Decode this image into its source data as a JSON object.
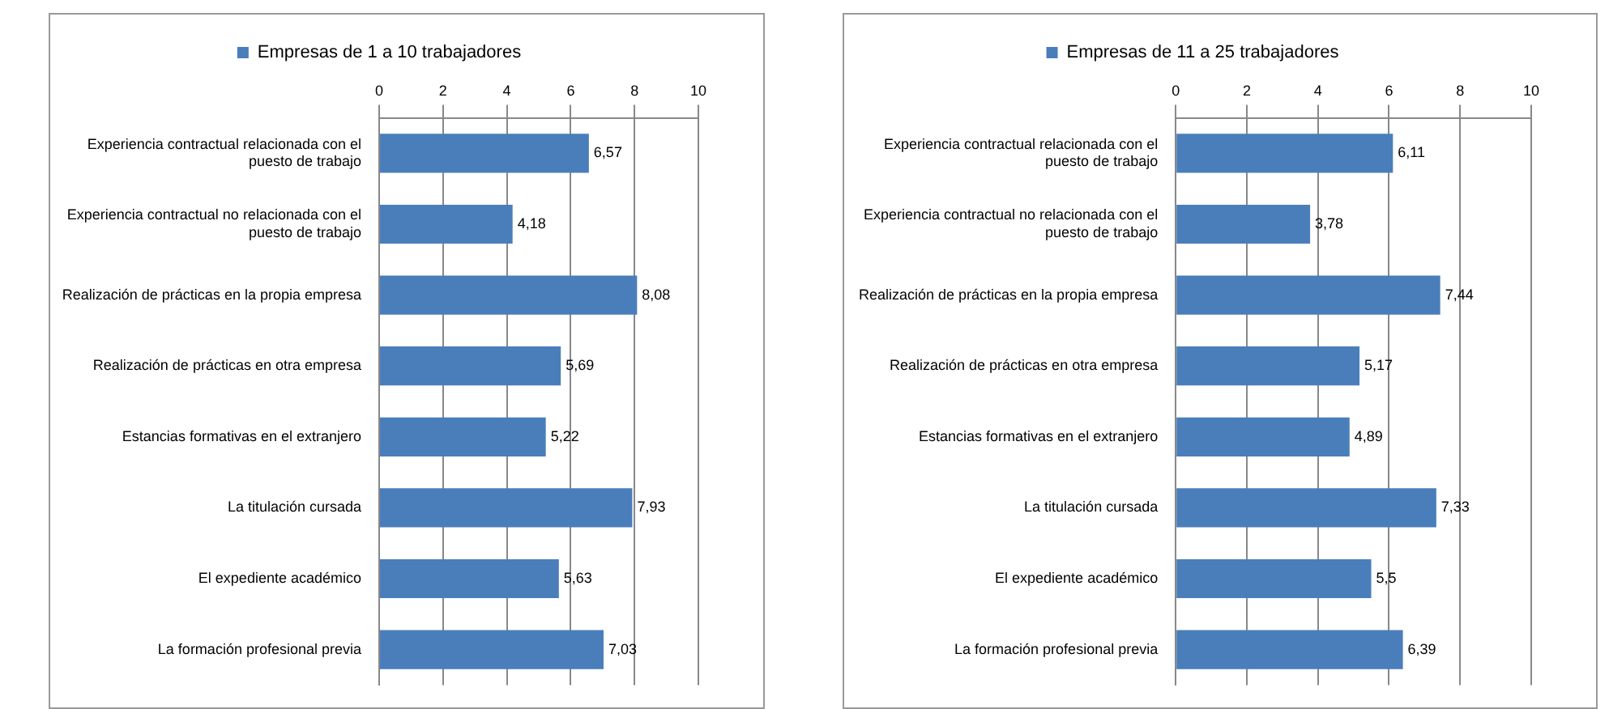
{
  "chart_data": [
    {
      "type": "bar",
      "orientation": "horizontal",
      "categories": [
        "Experiencia contractual relacionada con el puesto de trabajo",
        "Experiencia contractual no relacionada con el puesto de trabajo",
        "Realización de prácticas en la propia empresa",
        "Realización de prácticas en otra empresa",
        "Estancias formativas en el extranjero",
        "La titulación cursada",
        "El expediente académico",
        "La formación profesional previa"
      ],
      "series": [
        {
          "name": "Empresas de 1 a 10 trabajadores",
          "color": "#4a7ebb",
          "values": [
            6.57,
            4.18,
            8.08,
            5.69,
            5.22,
            7.93,
            5.63,
            7.03
          ],
          "value_labels": [
            "6,57",
            "4,18",
            "8,08",
            "5,69",
            "5,22",
            "7,93",
            "5,63",
            "7,03"
          ]
        }
      ],
      "xlim": [
        0,
        10
      ],
      "xticks": [
        0,
        2,
        4,
        6,
        8,
        10
      ],
      "grid": "x",
      "legend": "top"
    },
    {
      "type": "bar",
      "orientation": "horizontal",
      "categories": [
        "Experiencia contractual relacionada con el puesto de trabajo",
        "Experiencia contractual no relacionada con el puesto de trabajo",
        "Realización de prácticas en la propia empresa",
        "Realización de prácticas en otra empresa",
        "Estancias formativas en el extranjero",
        "La titulación cursada",
        "El expediente académico",
        "La formación profesional previa"
      ],
      "series": [
        {
          "name": "Empresas de 11 a 25 trabajadores",
          "color": "#4a7ebb",
          "values": [
            6.11,
            3.78,
            7.44,
            5.17,
            4.89,
            7.33,
            5.5,
            6.39
          ],
          "value_labels": [
            "6,11",
            "3,78",
            "7,44",
            "5,17",
            "4,89",
            "7,33",
            "5,5",
            "6,39"
          ]
        }
      ],
      "xlim": [
        0,
        10
      ],
      "xticks": [
        0,
        2,
        4,
        6,
        8,
        10
      ],
      "grid": "x",
      "legend": "top"
    }
  ]
}
